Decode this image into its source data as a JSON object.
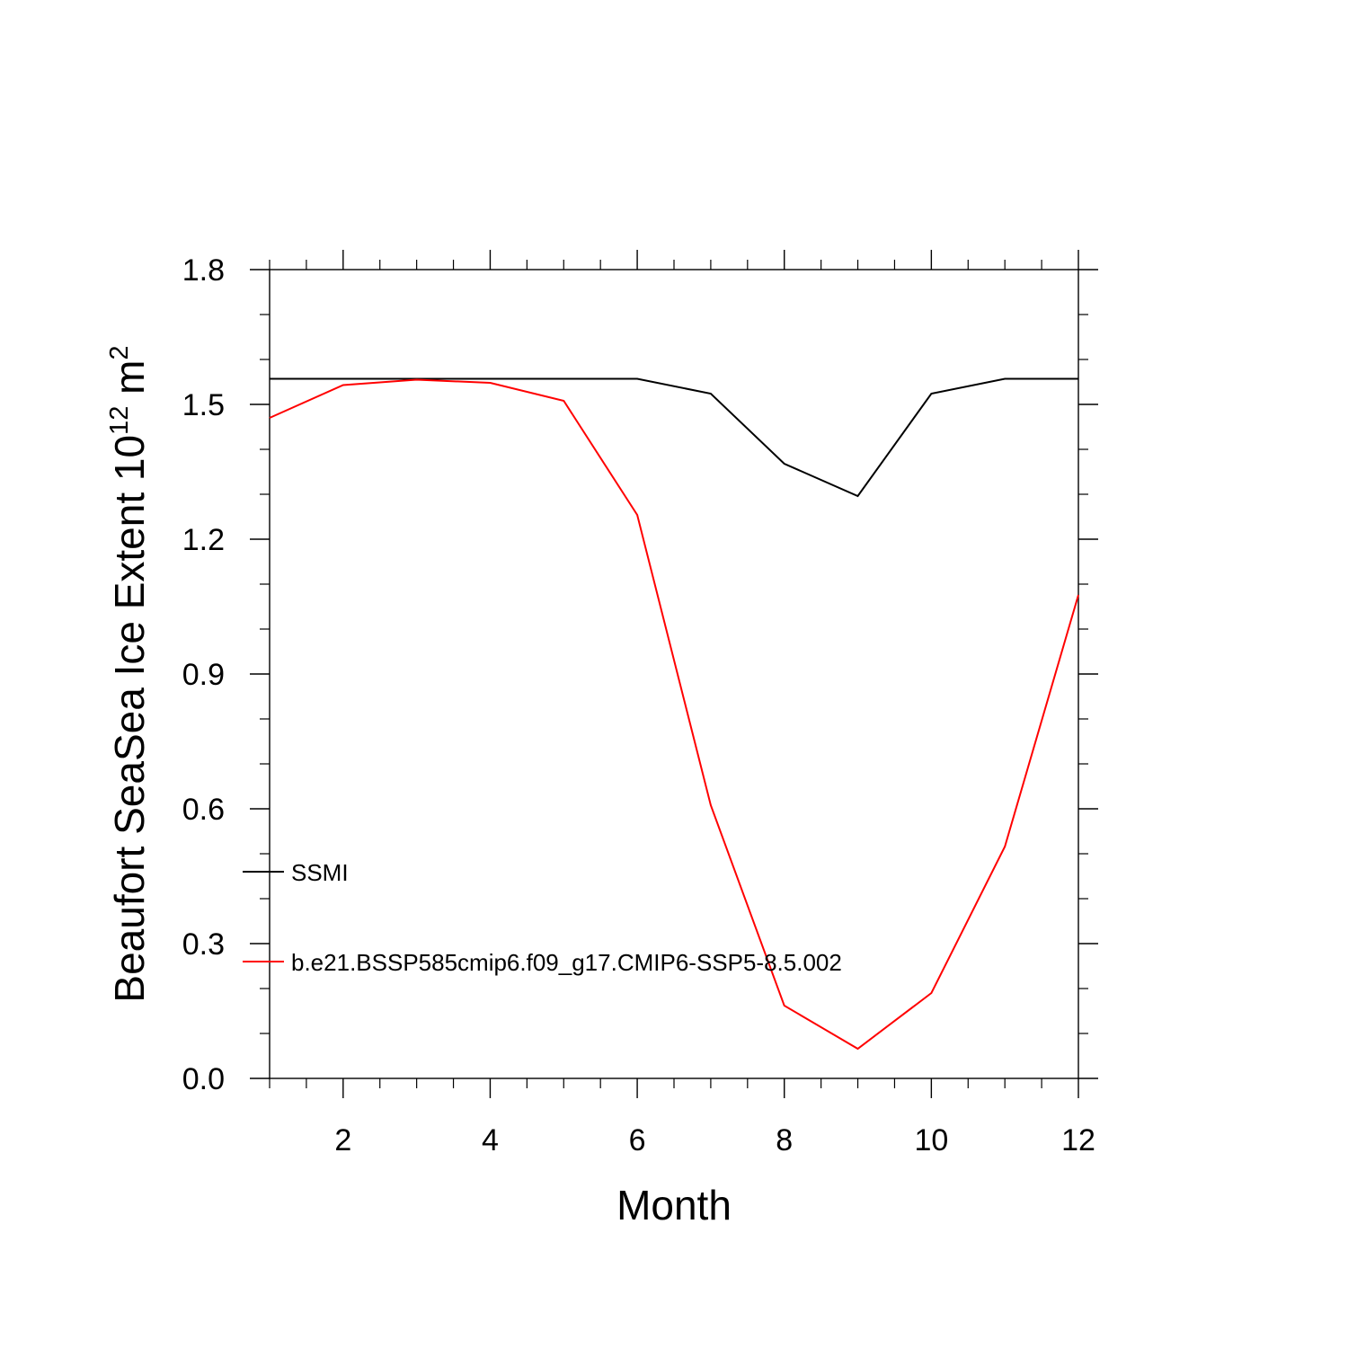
{
  "chart_data": {
    "type": "line",
    "xlabel": "Month",
    "ylabel": "Beaufort SeaSea Ice Extent 10",
    "ylabel_exp": "12",
    "ylabel_unit": " m",
    "ylabel_unit_exp": "2",
    "xlim": [
      1,
      12
    ],
    "ylim": [
      0.0,
      1.8
    ],
    "xticks_major": [
      2,
      4,
      6,
      8,
      10,
      12
    ],
    "yticks_major": [
      0.0,
      0.3,
      0.6,
      0.9,
      1.2,
      1.5,
      1.8
    ],
    "ytick_labels": [
      "0.0",
      "0.3",
      "0.6",
      "0.9",
      "1.2",
      "1.5",
      "1.8"
    ],
    "x": [
      1,
      2,
      3,
      4,
      5,
      6,
      7,
      8,
      9,
      10,
      11,
      12
    ],
    "series": [
      {
        "name": "SSMI",
        "color": "#000000",
        "values": [
          1.557,
          1.557,
          1.557,
          1.557,
          1.557,
          1.557,
          1.524,
          1.368,
          1.296,
          1.524,
          1.557,
          1.557
        ]
      },
      {
        "name": "b.e21.BSSP585cmip6.f09_g17.CMIP6-SSP5-8.5.002",
        "color": "#ff0000",
        "values": [
          1.47,
          1.543,
          1.555,
          1.548,
          1.508,
          1.254,
          0.608,
          0.162,
          0.066,
          0.19,
          0.516,
          1.076
        ]
      }
    ],
    "legend": "left-lower-inside",
    "grid": false
  }
}
